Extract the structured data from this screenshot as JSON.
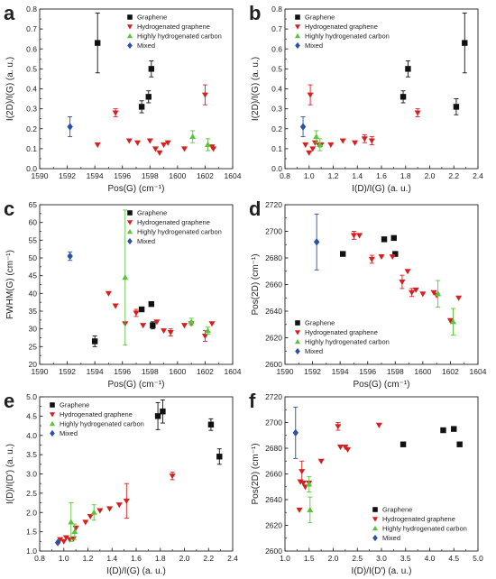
{
  "figure": {
    "colors": {
      "Graphene": "#111111",
      "Hydrogenated graphene": "#d62020",
      "Highly hydrogenated carbon": "#5cc23e",
      "Mixed": "#2a50a8"
    },
    "legend": [
      {
        "name": "Graphene",
        "marker": "square"
      },
      {
        "name": "Hydrogenated graphene",
        "marker": "triangle-down"
      },
      {
        "name": "Highly hydrogenated carbon",
        "marker": "triangle-up"
      },
      {
        "name": "Mixed",
        "marker": "diamond"
      }
    ]
  },
  "chart_data": [
    {
      "panel": "a",
      "type": "scatter",
      "xlabel": "Pos(G) (cm⁻¹)",
      "ylabel": "I(2D)/I(G) (a. u.)",
      "xlim": [
        1590,
        1604
      ],
      "ylim": [
        0,
        0.8
      ],
      "xticks": [
        1590,
        1592,
        1594,
        1596,
        1598,
        1600,
        1602,
        1604
      ],
      "yticks": [
        0,
        0.1,
        0.2,
        0.3,
        0.4,
        0.5,
        0.6,
        0.7,
        0.8
      ],
      "yticklabels": [
        "0.0",
        "0.1",
        "0.2",
        "0.3",
        "0.4",
        "0.5",
        "0.6",
        "0.7",
        "0.8"
      ],
      "legend_position": "top-right",
      "series": [
        {
          "name": "Graphene",
          "x": [
            1594.2,
            1597.4,
            1597.9,
            1598.1
          ],
          "y": [
            0.63,
            0.31,
            0.36,
            0.5
          ],
          "err": [
            0.15,
            0.03,
            0.03,
            0.04
          ]
        },
        {
          "name": "Hydrogenated graphene",
          "x": [
            1594.2,
            1595.5,
            1596.5,
            1597.1,
            1598.0,
            1598.4,
            1598.7,
            1599.0,
            1599.3,
            1600.5,
            1602.0,
            1602.5,
            1602.6
          ],
          "y": [
            0.12,
            0.28,
            0.14,
            0.13,
            0.14,
            0.1,
            0.08,
            0.12,
            0.13,
            0.1,
            0.37,
            0.11,
            0.1
          ],
          "err": [
            0,
            0.02,
            0,
            0,
            0,
            0,
            0,
            0,
            0,
            0,
            0.05,
            0,
            0
          ]
        },
        {
          "name": "Highly hydrogenated carbon",
          "x": [
            1601.1,
            1602.2
          ],
          "y": [
            0.16,
            0.12
          ],
          "err": [
            0.03,
            0.03
          ]
        },
        {
          "name": "Mixed",
          "x": [
            1592.2
          ],
          "y": [
            0.21
          ],
          "err": [
            0.05
          ]
        }
      ]
    },
    {
      "panel": "b",
      "type": "scatter",
      "xlabel": "I(D)/I(G) (a. u.)",
      "ylabel": "I(2D)/I(G) (a. u.)",
      "xlim": [
        0.8,
        2.4
      ],
      "ylim": [
        0,
        0.8
      ],
      "xticks": [
        0.8,
        1.0,
        1.2,
        1.4,
        1.6,
        1.8,
        2.0,
        2.2,
        2.4
      ],
      "yticks": [
        0,
        0.1,
        0.2,
        0.3,
        0.4,
        0.5,
        0.6,
        0.7,
        0.8
      ],
      "xticklabels": [
        "0.8",
        "1.0",
        "1.2",
        "1.4",
        "1.6",
        "1.8",
        "2.0",
        "2.2",
        "2.4"
      ],
      "yticklabels": [
        "0.0",
        "0.1",
        "0.2",
        "0.3",
        "0.4",
        "0.5",
        "0.6",
        "0.7",
        "0.8"
      ],
      "legend_position": "top-left",
      "series": [
        {
          "name": "Graphene",
          "x": [
            1.78,
            1.82,
            2.22,
            2.29
          ],
          "y": [
            0.36,
            0.5,
            0.31,
            0.63
          ],
          "err": [
            0.03,
            0.04,
            0.04,
            0.15
          ]
        },
        {
          "name": "Hydrogenated graphene",
          "x": [
            0.97,
            1.0,
            1.01,
            1.03,
            1.05,
            1.08,
            1.1,
            1.18,
            1.28,
            1.38,
            1.46,
            1.52,
            1.9
          ],
          "y": [
            0.12,
            0.08,
            0.37,
            0.1,
            0.13,
            0.12,
            0.12,
            0.12,
            0.14,
            0.13,
            0.15,
            0.14,
            0.28
          ],
          "err": [
            0,
            0,
            0.05,
            0,
            0,
            0,
            0,
            0,
            0,
            0,
            0.02,
            0.02,
            0.02
          ]
        },
        {
          "name": "Highly hydrogenated carbon",
          "x": [
            1.06,
            1.09
          ],
          "y": [
            0.16,
            0.12
          ],
          "err": [
            0.03,
            0.03
          ]
        },
        {
          "name": "Mixed",
          "x": [
            0.95
          ],
          "y": [
            0.21
          ],
          "err": [
            0.05
          ]
        }
      ]
    },
    {
      "panel": "c",
      "type": "scatter",
      "xlabel": "Pos(G) (cm⁻¹)",
      "ylabel": "FWHM(G) (cm⁻¹)",
      "xlim": [
        1590,
        1604
      ],
      "ylim": [
        20,
        65
      ],
      "xticks": [
        1590,
        1592,
        1594,
        1596,
        1598,
        1600,
        1602,
        1604
      ],
      "yticks": [
        20,
        25,
        30,
        35,
        40,
        45,
        50,
        55,
        60,
        65
      ],
      "legend_position": "top-right",
      "series": [
        {
          "name": "Graphene",
          "x": [
            1594.0,
            1597.4,
            1598.1,
            1598.2
          ],
          "y": [
            26.5,
            35.5,
            37.0,
            31.0
          ],
          "err": [
            1.5,
            0,
            0,
            1.0
          ]
        },
        {
          "name": "Hydrogenated graphene",
          "x": [
            1595.0,
            1595.5,
            1596.2,
            1597.0,
            1597.5,
            1598.5,
            1599.0,
            1599.5,
            1600.5,
            1601.0,
            1602.0,
            1602.5
          ],
          "y": [
            40.0,
            36.5,
            31.5,
            34.5,
            31.0,
            32.0,
            29.5,
            29.0,
            31.0,
            31.5,
            28.0,
            31.5
          ],
          "err": [
            0,
            0,
            0,
            1.0,
            0,
            0,
            0,
            1.0,
            0,
            0,
            1.5,
            0
          ]
        },
        {
          "name": "Highly hydrogenated carbon",
          "x": [
            1596.2,
            1601.0,
            1602.2
          ],
          "y": [
            44.5,
            32.0,
            29.5
          ],
          "err": [
            19.0,
            1.0,
            1.0
          ]
        },
        {
          "name": "Mixed",
          "x": [
            1592.2
          ],
          "y": [
            50.5
          ],
          "err": [
            1.2
          ]
        }
      ]
    },
    {
      "panel": "d",
      "type": "scatter",
      "xlabel": "Pos(G) (cm⁻¹)",
      "ylabel": "Pos(2D) (cm⁻¹)",
      "xlim": [
        1590,
        1604
      ],
      "ylim": [
        2600,
        2720
      ],
      "xticks": [
        1590,
        1592,
        1594,
        1596,
        1598,
        1600,
        1602,
        1604
      ],
      "yticks": [
        2600,
        2620,
        2640,
        2660,
        2680,
        2700,
        2720
      ],
      "legend_position": "bottom-left",
      "series": [
        {
          "name": "Graphene",
          "x": [
            1594.2,
            1597.2,
            1597.9,
            1598.0
          ],
          "y": [
            2683,
            2694,
            2695,
            2683
          ],
          "err": [
            0,
            0,
            0,
            0
          ]
        },
        {
          "name": "Hydrogenated graphene",
          "x": [
            1595.0,
            1595.4,
            1596.3,
            1597.0,
            1597.8,
            1598.5,
            1598.9,
            1599.2,
            1599.5,
            1600.0,
            1600.8,
            1601.0,
            1602.0,
            1602.6
          ],
          "y": [
            2697,
            2697,
            2679,
            2681,
            2681,
            2662,
            2670,
            2654,
            2656,
            2653,
            2654,
            2652,
            2633,
            2650
          ],
          "err": [
            3,
            0,
            3,
            0,
            0,
            5,
            0,
            3,
            0,
            0,
            0,
            0,
            0,
            0
          ]
        },
        {
          "name": "Highly hydrogenated carbon",
          "x": [
            1601.1,
            1602.2
          ],
          "y": [
            2653,
            2632
          ],
          "err": [
            10,
            10
          ]
        },
        {
          "name": "Mixed",
          "x": [
            1592.3
          ],
          "y": [
            2692
          ],
          "err": [
            21
          ]
        }
      ]
    },
    {
      "panel": "e",
      "type": "scatter",
      "xlabel": "I(D)/I(G) (a. u.)",
      "ylabel": "I(D)/I(D') (a. u.)",
      "xlim": [
        0.8,
        2.4
      ],
      "ylim": [
        1.0,
        5.0
      ],
      "xticks": [
        0.8,
        1.0,
        1.2,
        1.4,
        1.6,
        1.8,
        2.0,
        2.2,
        2.4
      ],
      "yticks": [
        1.0,
        1.5,
        2.0,
        2.5,
        3.0,
        3.5,
        4.0,
        4.5,
        5.0
      ],
      "xticklabels": [
        "0.8",
        "1.0",
        "1.2",
        "1.4",
        "1.6",
        "1.8",
        "2.0",
        "2.2",
        "2.4"
      ],
      "yticklabels": [
        "1.0",
        "1.5",
        "2.0",
        "2.5",
        "3.0",
        "3.5",
        "4.0",
        "4.5",
        "5.0"
      ],
      "legend_position": "top-left",
      "series": [
        {
          "name": "Graphene",
          "x": [
            1.78,
            1.82,
            2.22,
            2.29
          ],
          "y": [
            4.5,
            4.62,
            4.28,
            3.45
          ],
          "err": [
            0.35,
            0.3,
            0.15,
            0.2
          ]
        },
        {
          "name": "Hydrogenated graphene",
          "x": [
            0.97,
            1.0,
            1.02,
            1.05,
            1.08,
            1.1,
            1.18,
            1.22,
            1.3,
            1.38,
            1.46,
            1.52,
            1.9
          ],
          "y": [
            1.3,
            1.25,
            1.35,
            1.3,
            1.32,
            1.6,
            1.75,
            1.9,
            2.05,
            2.1,
            2.2,
            2.3,
            2.95
          ],
          "err": [
            0,
            0,
            0,
            0,
            0,
            0,
            0,
            0,
            0,
            0,
            0,
            0.45,
            0.1
          ]
        },
        {
          "name": "Highly hydrogenated carbon",
          "x": [
            1.06,
            1.09,
            1.25
          ],
          "y": [
            1.75,
            1.5,
            2.0
          ],
          "err": [
            0.5,
            0.2,
            0.2
          ]
        },
        {
          "name": "Mixed",
          "x": [
            0.95
          ],
          "y": [
            1.22
          ],
          "err": [
            0
          ]
        }
      ]
    },
    {
      "panel": "f",
      "type": "scatter",
      "xlabel": "I(D)/I(D') (a. u.)",
      "ylabel": "Pos(2D) (cm⁻¹)",
      "xlim": [
        1.0,
        5.0
      ],
      "ylim": [
        2600,
        2720
      ],
      "xticks": [
        1.0,
        1.5,
        2.0,
        2.5,
        3.0,
        3.5,
        4.0,
        4.5,
        5.0
      ],
      "yticks": [
        2600,
        2620,
        2640,
        2660,
        2680,
        2700,
        2720
      ],
      "xticklabels": [
        "1.0",
        "1.5",
        "2.0",
        "2.5",
        "3.0",
        "3.5",
        "4.0",
        "4.5",
        "5.0"
      ],
      "legend_position": "bottom-right",
      "series": [
        {
          "name": "Graphene",
          "x": [
            3.45,
            4.28,
            4.5,
            4.62
          ],
          "y": [
            2683,
            2694,
            2695,
            2683
          ],
          "err": [
            0,
            0,
            0,
            0
          ]
        },
        {
          "name": "Hydrogenated graphene",
          "x": [
            1.3,
            1.32,
            1.35,
            1.38,
            1.42,
            1.5,
            1.75,
            2.1,
            2.15,
            2.25,
            2.3,
            2.95
          ],
          "y": [
            2632,
            2654,
            2662,
            2653,
            2650,
            2653,
            2670,
            2697,
            2681,
            2681,
            2679,
            2698
          ],
          "err": [
            0,
            0,
            8,
            0,
            0,
            0,
            0,
            3,
            0,
            0,
            0,
            0
          ]
        },
        {
          "name": "Highly hydrogenated carbon",
          "x": [
            1.5,
            1.52
          ],
          "y": [
            2652,
            2632
          ],
          "err": [
            6,
            10
          ]
        },
        {
          "name": "Mixed",
          "x": [
            1.22
          ],
          "y": [
            2692
          ],
          "err": [
            20
          ]
        }
      ]
    }
  ]
}
